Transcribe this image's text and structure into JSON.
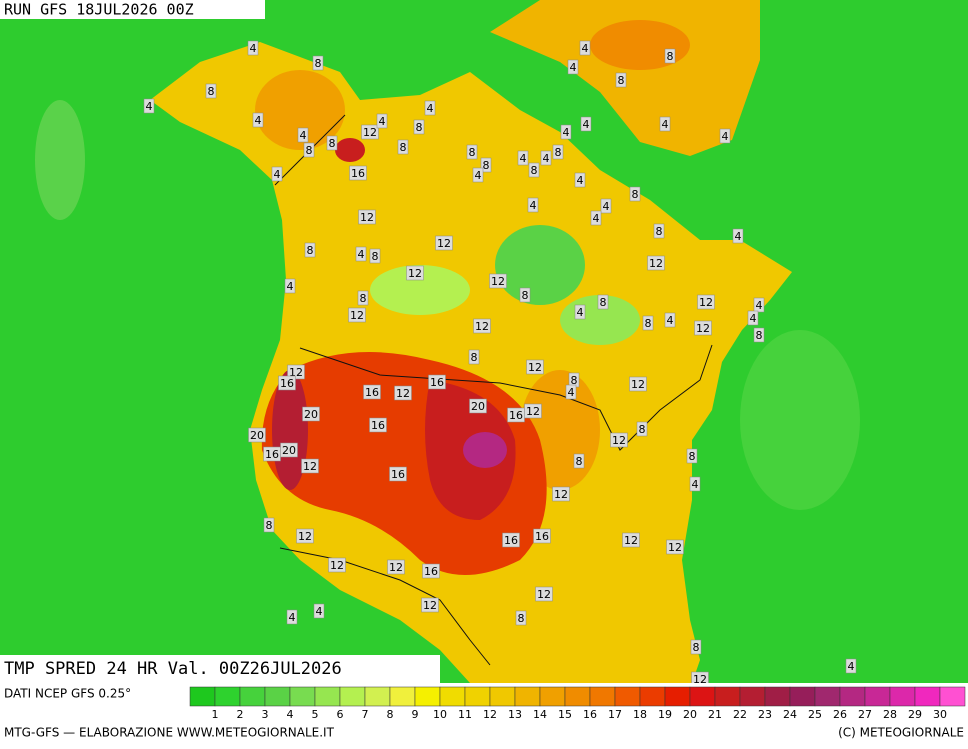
{
  "header": {
    "run": "RUN GFS 18JUL2026 00Z"
  },
  "footer": {
    "title": "TMP SPRED 24 HR Val. 00Z26JUL2026",
    "source": "DATI NCEP GFS 0.25°",
    "credit": "MTG-GFS — ELABORAZIONE WWW.METEOGIORNALE.IT",
    "copyright": "(C) METEOGIORNALE"
  },
  "scale": {
    "labels": [
      1,
      2,
      3,
      4,
      5,
      6,
      7,
      8,
      9,
      10,
      11,
      12,
      13,
      14,
      15,
      16,
      17,
      18,
      19,
      20,
      21,
      22,
      23,
      24,
      25,
      26,
      27,
      28,
      29,
      30
    ],
    "colors": [
      "#1ec81e",
      "#2ed22e",
      "#46d23c",
      "#5ad246",
      "#78dc50",
      "#96e650",
      "#b4f050",
      "#d2f050",
      "#f0f03c",
      "#f5f000",
      "#f0dc00",
      "#f0d200",
      "#f0c800",
      "#f0b400",
      "#f0a000",
      "#f08c00",
      "#f07800",
      "#f05a00",
      "#eb3c00",
      "#e61e00",
      "#dc1414",
      "#c81e1e",
      "#b41e32",
      "#a01e46",
      "#961e5a",
      "#a0286e",
      "#b42882",
      "#c82896",
      "#dc28aa",
      "#f028be",
      "#ff50d2"
    ]
  },
  "map": {
    "contour_labels": [
      4,
      8,
      8,
      4,
      4,
      4,
      8,
      4,
      12,
      4,
      4,
      8,
      8,
      8,
      16,
      4,
      8,
      4,
      8,
      4,
      4,
      4,
      4,
      8,
      8,
      4,
      4,
      4,
      8,
      8,
      4,
      8,
      4,
      4,
      4,
      12,
      8,
      4,
      12,
      8,
      4,
      8,
      12,
      12,
      12,
      4,
      8,
      8,
      12,
      4,
      8,
      12,
      4,
      4,
      8,
      4,
      12,
      8,
      12,
      8,
      12,
      12,
      16,
      16,
      8,
      4,
      12,
      16,
      12,
      20,
      20,
      16,
      12,
      16,
      20,
      20,
      16,
      12,
      8,
      12,
      8,
      8,
      16,
      4,
      12,
      8,
      12,
      16,
      16,
      12,
      12,
      12,
      12,
      16,
      12,
      12,
      4,
      4,
      8,
      8,
      12,
      4
    ]
  }
}
